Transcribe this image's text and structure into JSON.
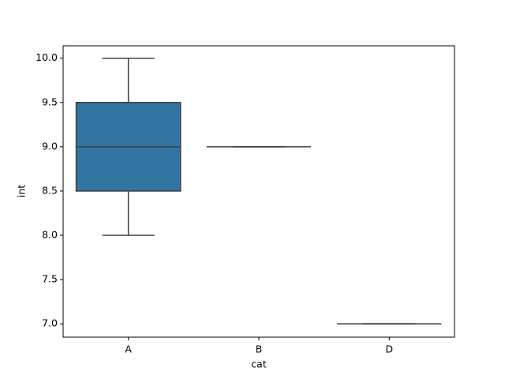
{
  "chart_data": {
    "type": "box",
    "x_label": "cat",
    "y_label": "int",
    "categories": [
      "A",
      "B",
      "D"
    ],
    "boxes": [
      {
        "min": 8,
        "q1": 8.5,
        "median": 9,
        "q3": 9.5,
        "max": 10
      },
      {
        "min": 9,
        "q1": 9,
        "median": 9,
        "q3": 9,
        "max": 9
      },
      {
        "min": 7,
        "q1": 7,
        "median": 7,
        "q3": 7,
        "max": 7
      }
    ],
    "colors": [
      "#3274a1",
      "#e1812c",
      "#3a923a"
    ],
    "ylim": [
      6.85,
      10.14
    ],
    "yticks": [
      {
        "value": 7,
        "label": "7.0"
      },
      7.5,
      {
        "value": 8,
        "label": "8.0"
      },
      8.5,
      {
        "value": 9,
        "label": "9.0"
      },
      9.5,
      {
        "value": 10,
        "label": "10.0"
      }
    ],
    "grid": false
  }
}
